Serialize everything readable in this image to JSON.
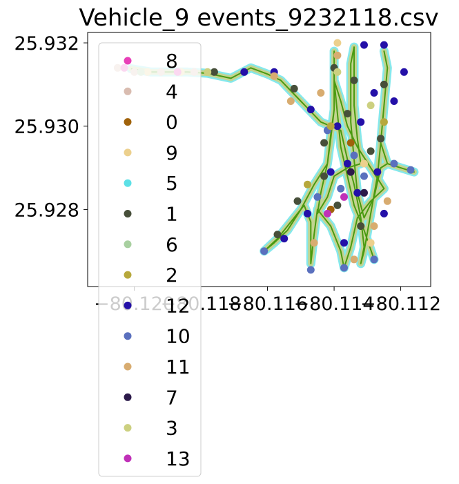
{
  "chart_data": {
    "type": "scatter",
    "title": "Vehicle_9 events_9232118.csv",
    "xlabel": "",
    "ylabel": "",
    "xlim": [
      -80.1214,
      -80.1111
    ],
    "ylim": [
      25.92615,
      25.93225
    ],
    "x_ticks": [
      {
        "value": -80.12,
        "label": "−80.120"
      },
      {
        "value": -80.118,
        "label": "−80.118"
      },
      {
        "value": -80.116,
        "label": "−80.116"
      },
      {
        "value": -80.114,
        "label": "−80.114"
      },
      {
        "value": -80.112,
        "label": "−80.112"
      }
    ],
    "y_ticks": [
      {
        "value": 25.928,
        "label": "25.928"
      },
      {
        "value": 25.93,
        "label": "25.930"
      },
      {
        "value": 25.932,
        "label": "25.932"
      }
    ],
    "grid": false,
    "legend_position": "upper-left (overflowing below axes)",
    "series": [
      {
        "name": "8",
        "color": "#e83fb8"
      },
      {
        "name": "4",
        "color": "#d9bcb0"
      },
      {
        "name": "0",
        "color": "#a0620a"
      },
      {
        "name": "9",
        "color": "#ecd08d"
      },
      {
        "name": "5",
        "color": "#5ce0e6"
      },
      {
        "name": "1",
        "color": "#474f3a"
      },
      {
        "name": "6",
        "color": "#a8d0a0"
      },
      {
        "name": "2",
        "color": "#b7a83c"
      },
      {
        "name": "12",
        "color": "#2410a8"
      },
      {
        "name": "10",
        "color": "#5a70be"
      },
      {
        "name": "11",
        "color": "#d8ac70"
      },
      {
        "name": "7",
        "color": "#2c1a4a"
      },
      {
        "name": "3",
        "color": "#ccd080"
      },
      {
        "name": "13",
        "color": "#c030b8"
      }
    ],
    "track_color": "#4a9a10",
    "path": [
      [
        -80.1201,
        25.93138
      ],
      [
        -80.1195,
        25.9313
      ],
      [
        -80.119,
        25.9313
      ],
      [
        -80.1184,
        25.9313
      ],
      [
        -80.1178,
        25.93127
      ],
      [
        -80.1171,
        25.93115
      ],
      [
        -80.1165,
        25.9314
      ],
      [
        -80.116,
        25.93125
      ],
      [
        -80.1156,
        25.9311
      ],
      [
        -80.1153,
        25.93085
      ],
      [
        -80.115,
        25.9306
      ],
      [
        -80.1147,
        25.93035
      ],
      [
        -80.1144,
        25.9301
      ],
      [
        -80.1141,
        25.93
      ],
      [
        -80.1138,
        25.9299
      ],
      [
        -80.1136,
        25.9292
      ],
      [
        -80.1134,
        25.9286
      ],
      [
        -80.1132,
        25.9278
      ],
      [
        -80.1131,
        25.9271
      ],
      [
        -80.1132,
        25.9267
      ],
      [
        -80.1131,
        25.927
      ],
      [
        -80.1129,
        25.9279
      ],
      [
        -80.1127,
        25.9288
      ],
      [
        -80.1126,
        25.9296
      ],
      [
        -80.1125,
        25.9305
      ],
      [
        -80.1124,
        25.9314
      ],
      [
        -80.1125,
        25.9318
      ],
      [
        -80.1124,
        25.9314
      ],
      [
        -80.1125,
        25.9305
      ],
      [
        -80.1126,
        25.9296
      ],
      [
        -80.1124,
        25.9291
      ],
      [
        -80.112,
        25.929
      ],
      [
        -80.1116,
        25.9289
      ],
      [
        -80.112,
        25.929
      ],
      [
        -80.1124,
        25.9291
      ],
      [
        -80.1126,
        25.929
      ],
      [
        -80.1128,
        25.9283
      ],
      [
        -80.1131,
        25.9278
      ],
      [
        -80.1133,
        25.9284
      ],
      [
        -80.1134,
        25.9292
      ],
      [
        -80.1135,
        25.9301
      ],
      [
        -80.1135,
        25.9308
      ],
      [
        -80.1135,
        25.9315
      ],
      [
        -80.1134,
        25.9319
      ],
      [
        -80.1134,
        25.9313
      ],
      [
        -80.1134,
        25.9305
      ],
      [
        -80.1133,
        25.9297
      ],
      [
        -80.1132,
        25.9291
      ],
      [
        -80.1136,
        25.929
      ],
      [
        -80.114,
        25.9288
      ],
      [
        -80.1142,
        25.9283
      ],
      [
        -80.1145,
        25.9279
      ],
      [
        -80.1144,
        25.9284
      ],
      [
        -80.1142,
        25.9291
      ],
      [
        -80.1141,
        25.9298
      ],
      [
        -80.114,
        25.9304
      ],
      [
        -80.114,
        25.9311
      ],
      [
        -80.114,
        25.9318
      ],
      [
        -80.114,
        25.9312
      ],
      [
        -80.114,
        25.9304
      ],
      [
        -80.1141,
        25.9297
      ],
      [
        -80.1142,
        25.9291
      ],
      [
        -80.1146,
        25.9286
      ],
      [
        -80.115,
        25.928
      ],
      [
        -80.1154,
        25.9275
      ],
      [
        -80.1158,
        25.9272
      ],
      [
        -80.1161,
        25.927
      ],
      [
        -80.1157,
        25.9273
      ],
      [
        -80.1153,
        25.9277
      ],
      [
        -80.1149,
        25.9281
      ],
      [
        -80.1147,
        25.9277
      ],
      [
        -80.1147,
        25.9273
      ],
      [
        -80.1147,
        25.9267
      ],
      [
        -80.1146,
        25.9274
      ],
      [
        -80.1145,
        25.928
      ],
      [
        -80.1141,
        25.9276
      ],
      [
        -80.1138,
        25.927
      ],
      [
        -80.1137,
        25.9266
      ],
      [
        -80.1135,
        25.9271
      ],
      [
        -80.1133,
        25.9278
      ],
      [
        -80.1129,
        25.9282
      ],
      [
        -80.1125,
        25.9285
      ],
      [
        -80.1129,
        25.929
      ],
      [
        -80.1133,
        25.9295
      ],
      [
        -80.1136,
        25.93
      ],
      [
        -80.1138,
        25.9306
      ],
      [
        -80.114,
        25.9311
      ],
      [
        -80.1139,
        25.9303
      ],
      [
        -80.1138,
        25.9295
      ],
      [
        -80.1136,
        25.9288
      ],
      [
        -80.1134,
        25.9281
      ],
      [
        -80.1131,
        25.9275
      ],
      [
        -80.1128,
        25.9268
      ]
    ],
    "events": [
      {
        "s": 12,
        "x": -80.1167,
        "y": 25.9313
      },
      {
        "s": 12,
        "x": -80.1158,
        "y": 25.9313
      },
      {
        "s": 12,
        "x": -80.1147,
        "y": 25.9304
      },
      {
        "s": 12,
        "x": -80.1139,
        "y": 25.93
      },
      {
        "s": 12,
        "x": -80.1131,
        "y": 25.93195
      },
      {
        "s": 12,
        "x": -80.1125,
        "y": 25.93195
      },
      {
        "s": 12,
        "x": -80.1119,
        "y": 25.9313
      },
      {
        "s": 12,
        "x": -80.1132,
        "y": 25.9301
      },
      {
        "s": 12,
        "x": -80.1136,
        "y": 25.9291
      },
      {
        "s": 12,
        "x": -80.1141,
        "y": 25.9289
      },
      {
        "s": 12,
        "x": -80.1127,
        "y": 25.9289
      },
      {
        "s": 12,
        "x": -80.1133,
        "y": 25.9284
      },
      {
        "s": 12,
        "x": -80.1148,
        "y": 25.9279
      },
      {
        "s": 12,
        "x": -80.1137,
        "y": 25.9272
      },
      {
        "s": 12,
        "x": -80.1125,
        "y": 25.9279
      },
      {
        "s": 12,
        "x": -80.1155,
        "y": 25.9273
      },
      {
        "s": 12,
        "x": -80.1122,
        "y": 25.9306
      },
      {
        "s": 12,
        "x": -80.1128,
        "y": 25.9308
      },
      {
        "s": 10,
        "x": -80.1161,
        "y": 25.927
      },
      {
        "s": 10,
        "x": -80.1147,
        "y": 25.92655
      },
      {
        "s": 10,
        "x": -80.1137,
        "y": 25.9266
      },
      {
        "s": 10,
        "x": -80.1128,
        "y": 25.9268
      },
      {
        "s": 10,
        "x": -80.1142,
        "y": 25.9299
      },
      {
        "s": 10,
        "x": -80.1138,
        "y": 25.9285
      },
      {
        "s": 10,
        "x": -80.1122,
        "y": 25.9291
      },
      {
        "s": 10,
        "x": -80.1131,
        "y": 25.9288
      },
      {
        "s": 10,
        "x": -80.1145,
        "y": 25.9283
      },
      {
        "s": 10,
        "x": -80.1117,
        "y": 25.92895
      },
      {
        "s": 10,
        "x": -80.1134,
        "y": 25.9293
      },
      {
        "s": 1,
        "x": -80.1176,
        "y": 25.9313
      },
      {
        "s": 1,
        "x": -80.1152,
        "y": 25.9309
      },
      {
        "s": 1,
        "x": -80.1143,
        "y": 25.9296
      },
      {
        "s": 1,
        "x": -80.114,
        "y": 25.9314
      },
      {
        "s": 1,
        "x": -80.1134,
        "y": 25.9311
      },
      {
        "s": 1,
        "x": -80.1126,
        "y": 25.9297
      },
      {
        "s": 1,
        "x": -80.1139,
        "y": 25.9281
      },
      {
        "s": 1,
        "x": -80.1132,
        "y": 25.9276
      },
      {
        "s": 1,
        "x": -80.1151,
        "y": 25.9282
      },
      {
        "s": 1,
        "x": -80.1157,
        "y": 25.9274
      },
      {
        "s": 1,
        "x": -80.1129,
        "y": 25.9294
      },
      {
        "s": 1,
        "x": -80.1136,
        "y": 25.9303
      },
      {
        "s": 1,
        "x": -80.1143,
        "y": 25.9288
      },
      {
        "s": 1,
        "x": -80.1125,
        "y": 25.931
      },
      {
        "s": 11,
        "x": -80.1158,
        "y": 25.9312
      },
      {
        "s": 11,
        "x": -80.1153,
        "y": 25.9306
      },
      {
        "s": 11,
        "x": -80.1146,
        "y": 25.9272
      },
      {
        "s": 11,
        "x": -80.1134,
        "y": 25.9268
      },
      {
        "s": 11,
        "x": -80.1128,
        "y": 25.9276
      },
      {
        "s": 11,
        "x": -80.1124,
        "y": 25.9282
      },
      {
        "s": 11,
        "x": -80.1144,
        "y": 25.9308
      },
      {
        "s": 11,
        "x": -80.1139,
        "y": 25.9317
      },
      {
        "s": 9,
        "x": -80.1196,
        "y": 25.9313
      },
      {
        "s": 9,
        "x": -80.1186,
        "y": 25.9313
      },
      {
        "s": 9,
        "x": -80.1139,
        "y": 25.932
      },
      {
        "s": 9,
        "x": -80.1131,
        "y": 25.9291
      },
      {
        "s": 9,
        "x": -80.1129,
        "y": 25.9272
      },
      {
        "s": 4,
        "x": -80.1205,
        "y": 25.9314
      },
      {
        "s": 4,
        "x": -80.12,
        "y": 25.9313
      },
      {
        "s": 4,
        "x": -80.1192,
        "y": 25.9313
      },
      {
        "s": 4,
        "x": -80.1182,
        "y": 25.9313
      },
      {
        "s": 8,
        "x": -80.1203,
        "y": 25.9314
      },
      {
        "s": 8,
        "x": -80.1187,
        "y": 25.9313
      },
      {
        "s": 0,
        "x": -80.1135,
        "y": 25.9296
      },
      {
        "s": 0,
        "x": -80.1141,
        "y": 25.928
      },
      {
        "s": 2,
        "x": -80.1141,
        "y": 25.93
      },
      {
        "s": 2,
        "x": -80.1148,
        "y": 25.9286
      },
      {
        "s": 2,
        "x": -80.1125,
        "y": 25.9301
      },
      {
        "s": 6,
        "x": -80.1198,
        "y": 25.9313
      },
      {
        "s": 3,
        "x": -80.1178,
        "y": 25.9313
      },
      {
        "s": 3,
        "x": -80.1139,
        "y": 25.9313
      },
      {
        "s": 3,
        "x": -80.1129,
        "y": 25.9305
      },
      {
        "s": 7,
        "x": -80.1135,
        "y": 25.9289
      },
      {
        "s": 7,
        "x": -80.1131,
        "y": 25.9284
      },
      {
        "s": 13,
        "x": -80.1142,
        "y": 25.9279
      },
      {
        "s": 13,
        "x": -80.1137,
        "y": 25.9283
      }
    ]
  }
}
